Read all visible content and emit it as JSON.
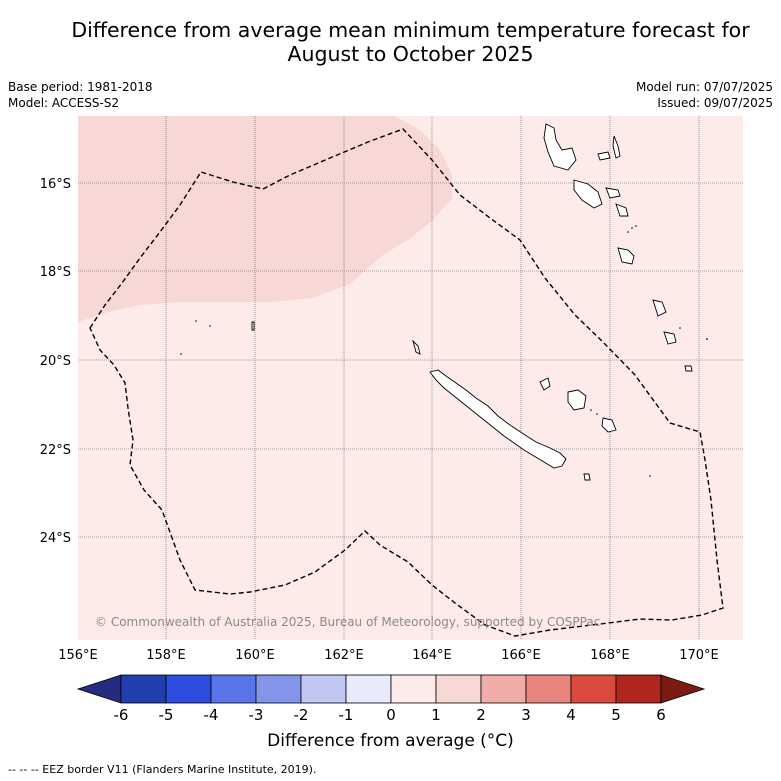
{
  "title_line1": "Difference from average mean minimum temperature forecast for",
  "title_line2": "August to October 2025",
  "meta": {
    "base_period": "Base period: 1981-2018",
    "model": "Model: ACCESS-S2",
    "model_run": "Model run: 07/07/2025",
    "issued": "Issued: 09/07/2025"
  },
  "map": {
    "lat_labels": [
      "16°S",
      "18°S",
      "20°S",
      "22°S",
      "24°S"
    ],
    "lon_labels": [
      "156°E",
      "158°E",
      "160°E",
      "162°E",
      "164°E",
      "166°E",
      "168°E",
      "170°E"
    ],
    "copyright": "© Commonwealth of Australia 2025, Bureau of Meteorology, supported by COSPPac",
    "colors": {
      "bin_0_1": "#fcebe9",
      "bin_1_2": "#f7d8d5",
      "grid": "#555555",
      "eez": "#000000"
    }
  },
  "colorbar": {
    "ticks": [
      "-6",
      "-5",
      "-4",
      "-3",
      "-2",
      "-1",
      "0",
      "1",
      "2",
      "3",
      "4",
      "5",
      "6"
    ],
    "colors": [
      "#232c82",
      "#223fae",
      "#2e4de0",
      "#5b74e8",
      "#8395ea",
      "#c0c7f2",
      "#e9ebfa",
      "#fcebe9",
      "#f7d8d5",
      "#f0aca8",
      "#e8857c",
      "#db4a3e",
      "#b0251d",
      "#7a1c14"
    ],
    "title": "Difference from average (°C)"
  },
  "footnote": "-- -- -- EEZ border V11 (Flanders Marine Institute, 2019)."
}
